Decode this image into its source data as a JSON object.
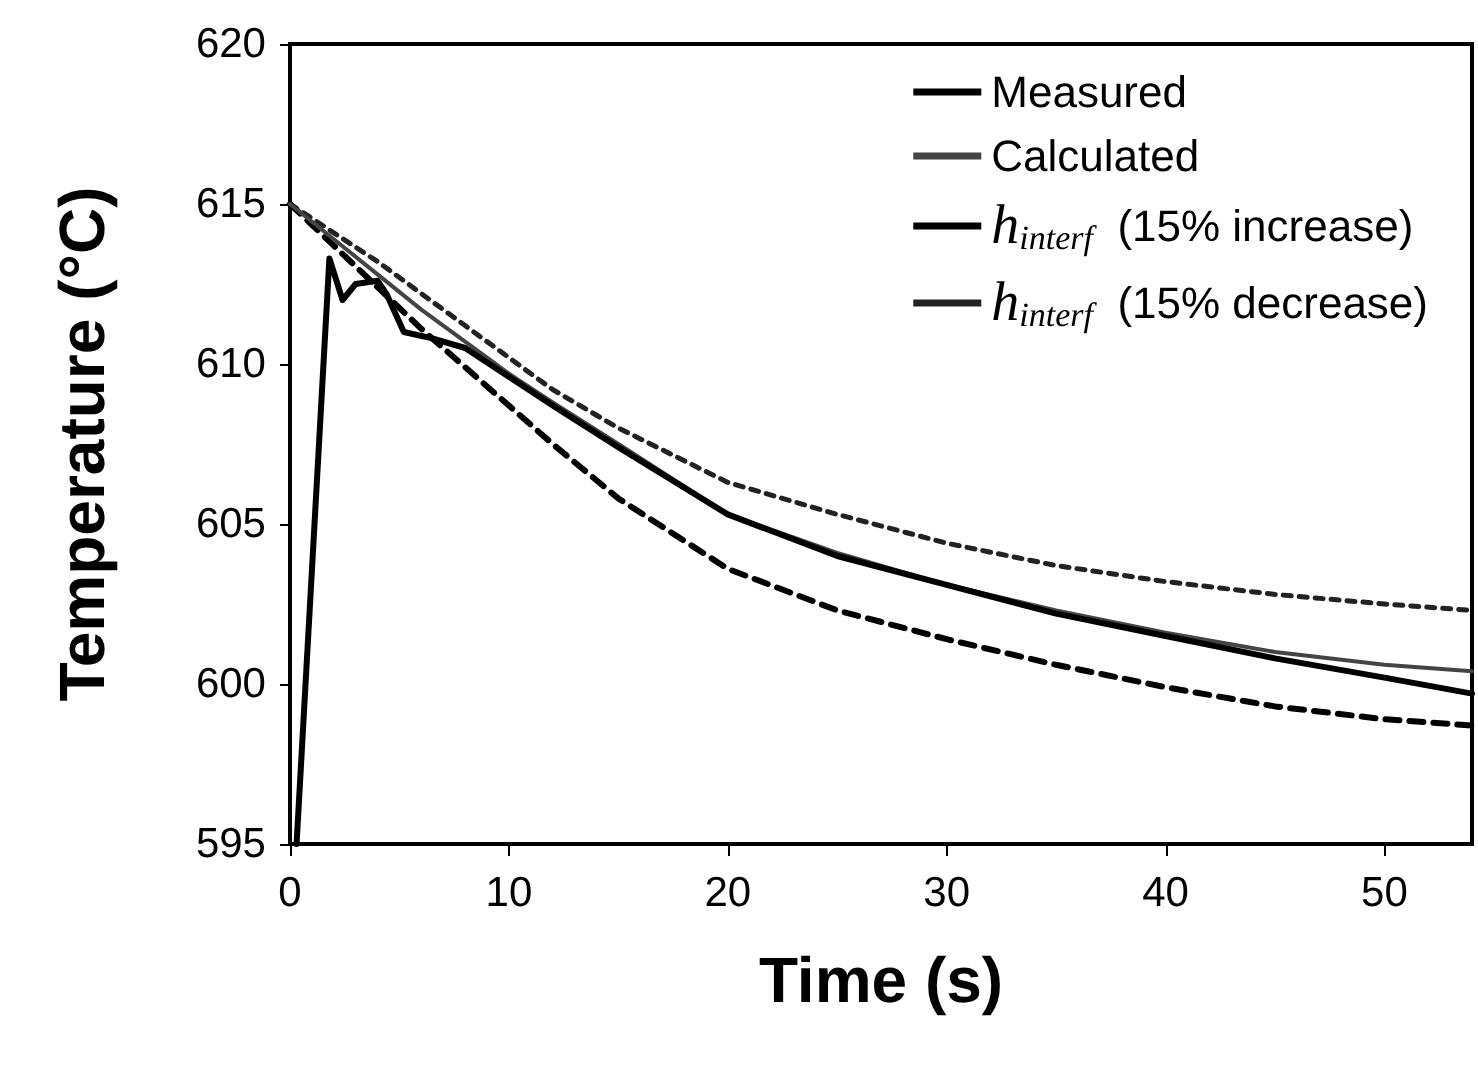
{
  "chart_data": {
    "type": "line",
    "xlabel": "Time (s)",
    "ylabel": "Temperature (°C)",
    "xlim": [
      0,
      54
    ],
    "xticks": [
      0,
      10,
      20,
      30,
      40,
      50
    ],
    "ylim": [
      595,
      620
    ],
    "yticks": [
      595,
      600,
      605,
      610,
      615,
      620
    ],
    "grid": false,
    "legend": "top right",
    "marker": "none",
    "series": [
      {
        "name": "Measured",
        "color": "#000000",
        "line_style": "solid",
        "x": [
          0.3,
          1.8,
          2.4,
          3.0,
          4.0,
          4.4,
          5.2,
          6.5,
          8,
          10,
          12,
          15,
          20,
          25,
          30,
          35,
          40,
          45,
          50,
          54
        ],
        "values": [
          595,
          613.3,
          612.0,
          612.5,
          612.6,
          612.2,
          611.0,
          610.8,
          610.5,
          609.6,
          608.7,
          607.4,
          605.3,
          604.0,
          603.1,
          602.2,
          601.5,
          600.8,
          600.2,
          599.7
        ]
      },
      {
        "name": "Calculated",
        "color": "#444444",
        "line_style": "solid",
        "x": [
          0,
          2,
          4,
          6,
          8,
          10,
          12,
          15,
          20,
          25,
          30,
          35,
          40,
          45,
          50,
          54
        ],
        "values": [
          615,
          613.9,
          612.8,
          611.7,
          610.7,
          609.7,
          608.8,
          607.5,
          605.3,
          604.1,
          603.1,
          602.3,
          601.6,
          601.0,
          600.6,
          600.4
        ]
      },
      {
        "name": "h$_{interf}$  (15% increase)",
        "color": "#000000",
        "line_style": "dashed",
        "x": [
          0,
          2,
          4,
          6,
          8,
          10,
          12,
          15,
          20,
          25,
          30,
          35,
          40,
          45,
          50,
          54
        ],
        "values": [
          615,
          613.7,
          612.4,
          611.1,
          609.9,
          608.7,
          607.5,
          605.8,
          603.6,
          602.3,
          601.4,
          600.6,
          599.9,
          599.3,
          598.9,
          598.7
        ]
      },
      {
        "name": "h$_{interf}$  (15% decrease)",
        "color": "#222222",
        "line_style": "dotted",
        "x": [
          0,
          2,
          4,
          6,
          8,
          10,
          12,
          15,
          20,
          25,
          30,
          35,
          40,
          45,
          50,
          54
        ],
        "values": [
          615,
          614.1,
          613.2,
          612.2,
          611.2,
          610.2,
          609.2,
          608.0,
          606.3,
          605.3,
          604.4,
          603.7,
          603.2,
          602.8,
          602.5,
          602.3
        ]
      }
    ]
  }
}
